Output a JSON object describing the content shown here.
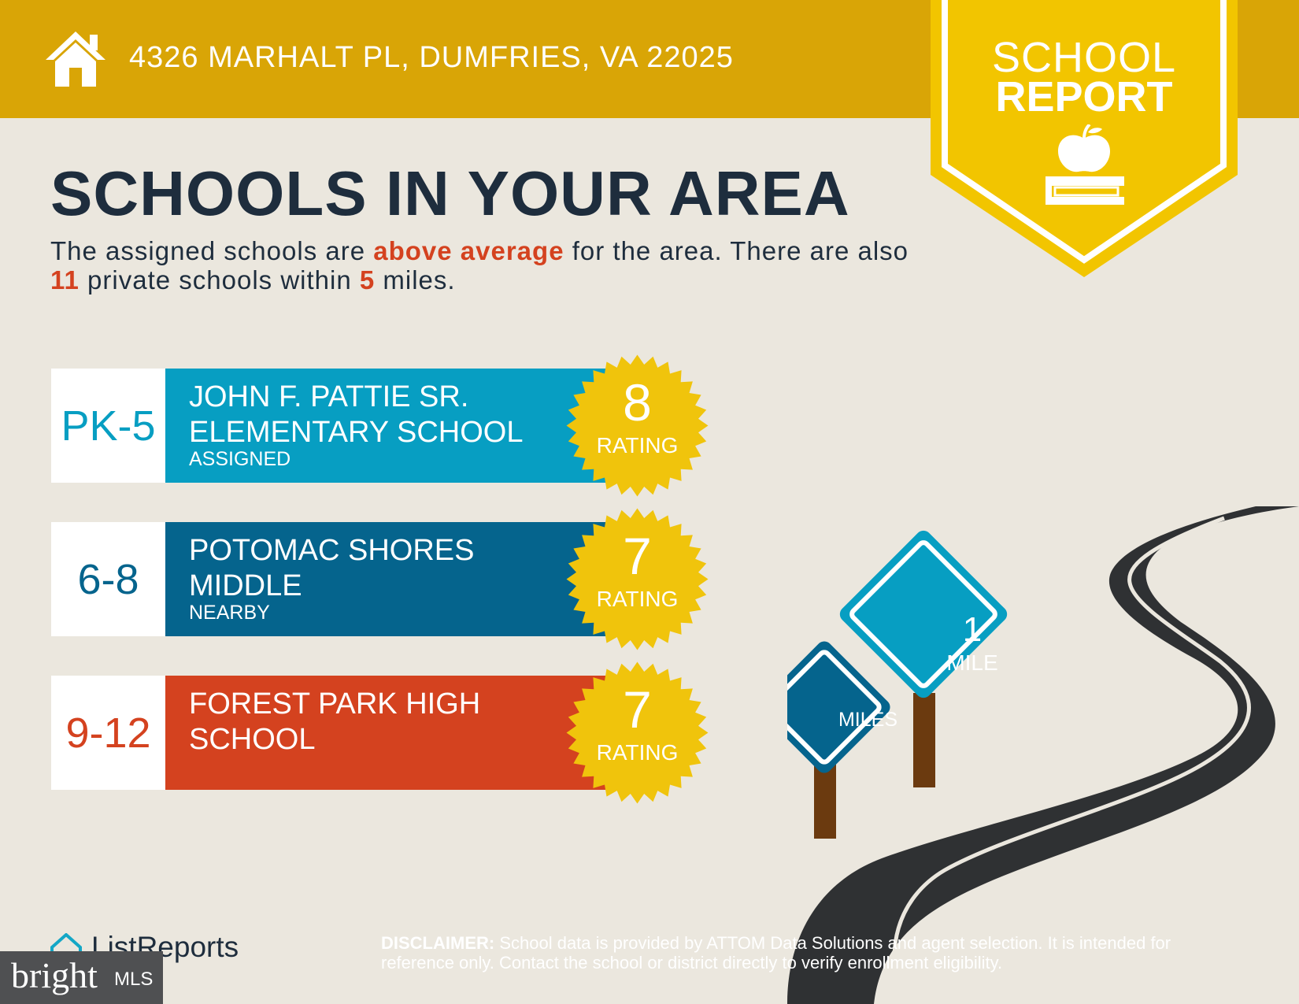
{
  "header": {
    "address": "4326 MARHALT PL, DUMFRIES, VA 22025",
    "home_icon": "house-icon"
  },
  "badge": {
    "line1": "SCHOOL",
    "line2": "REPORT",
    "icon": "apple-on-book-icon"
  },
  "title": "SCHOOLS IN YOUR AREA",
  "summary": {
    "part1": "The assigned schools are ",
    "highlight1": "above average",
    "part2": " for the area. There are also ",
    "private_count": "11",
    "part3": " private schools within ",
    "miles": "5",
    "part4": " miles."
  },
  "schools": [
    {
      "grades": "PK-5",
      "name": "JOHN F. PATTIE SR. ELEMENTARY SCHOOL",
      "status": "ASSIGNED",
      "rating": "8",
      "rating_label": "RATING",
      "color": "#079ec2",
      "grade_color": "#079ec2"
    },
    {
      "grades": "6-8",
      "name": "POTOMAC SHORES MIDDLE",
      "status": "NEARBY",
      "rating": "7",
      "rating_label": "RATING",
      "color": "#05648d",
      "grade_color": "#05648d"
    },
    {
      "grades": "9-12",
      "name": "FOREST PARK HIGH SCHOOL",
      "status": "",
      "rating": "7",
      "rating_label": "RATING",
      "color": "#d4421f",
      "grade_color": "#d4421f"
    }
  ],
  "signs": {
    "small_label": "MILES",
    "big_number": "1",
    "big_label": "MILE"
  },
  "footer": {
    "logo": "ListReports",
    "disclaimer_label": "DISCLAIMER:",
    "disclaimer_text": " School data is provided by ATTOM Data Solutions and agent selection. It is intended for reference only. Contact the school or district directly to verify enrollment eligibility.",
    "watermark_word": "bright",
    "watermark_mls": "MLS"
  },
  "colors": {
    "header": "#d9a506",
    "badge": "#f2c500",
    "seal": "#f0c40c",
    "title": "#1e2d3d",
    "highlight": "#d4421f"
  }
}
